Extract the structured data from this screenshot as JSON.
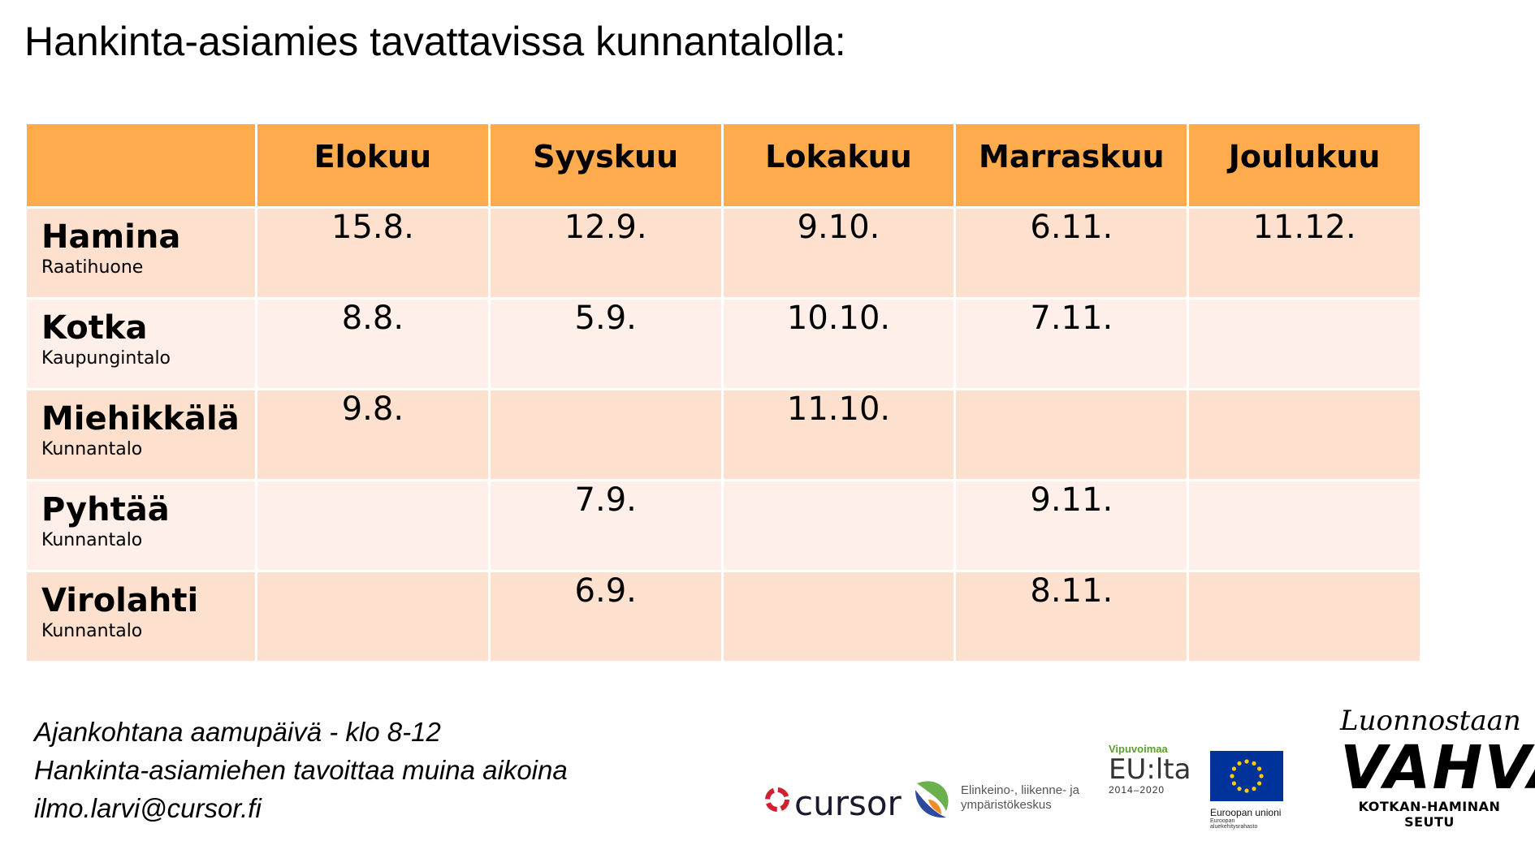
{
  "title": "Hankinta-asiamies tavattavissa kunnantalolla:",
  "table": {
    "corner": "",
    "months": [
      "Elokuu",
      "Syyskuu",
      "Lokakuu",
      "Marraskuu",
      "Joulukuu"
    ],
    "rows": [
      {
        "city": "Hamina",
        "venue": "Raatihuone",
        "dates": [
          "15.8.",
          "12.9.",
          "9.10.",
          "6.11.",
          "11.12."
        ]
      },
      {
        "city": "Kotka",
        "venue": "Kaupungintalo",
        "dates": [
          "8.8.",
          "5.9.",
          "10.10.",
          "7.11.",
          ""
        ]
      },
      {
        "city": "Miehikkälä",
        "venue": "Kunnantalo",
        "dates": [
          "9.8.",
          "",
          "11.10.",
          "",
          ""
        ]
      },
      {
        "city": "Pyhtää",
        "venue": "Kunnantalo",
        "dates": [
          "",
          "7.9.",
          "",
          "9.11.",
          ""
        ]
      },
      {
        "city": "Virolahti",
        "venue": "Kunnantalo",
        "dates": [
          "",
          "6.9.",
          "",
          "8.11.",
          ""
        ]
      }
    ]
  },
  "notes": {
    "line1": "Ajankohtana aamupäivä - klo 8-12",
    "line2": "Hankinta-asiamiehen tavoittaa muina aikoina",
    "line3": "ilmo.larvi@cursor.fi"
  },
  "logos": {
    "cursor": "cursor",
    "ely_line1": "Elinkeino-, liikenne- ja",
    "ely_line2": "ympäristökeskus",
    "vipuvoimaa_small": "Vipuvoimaa",
    "vipuvoimaa_big": "EU:lta",
    "vipuvoimaa_years": "2014–2020",
    "eu_caption": "Euroopan unioni",
    "eu_subcaption": "Euroopan aluekehitysrahasto",
    "vahva_script": "Luonnostaan",
    "vahva_big": "VAHVA",
    "vahva_sub": "KOTKAN-HAMINAN SEUTU"
  },
  "colors": {
    "header_bg": "#fdab4c",
    "row_odd_bg": "#fde0cd",
    "row_even_bg": "#fef0e8",
    "eu_blue": "#003399",
    "eu_star": "#ffcc00",
    "cursor_red": "#d0202e"
  }
}
